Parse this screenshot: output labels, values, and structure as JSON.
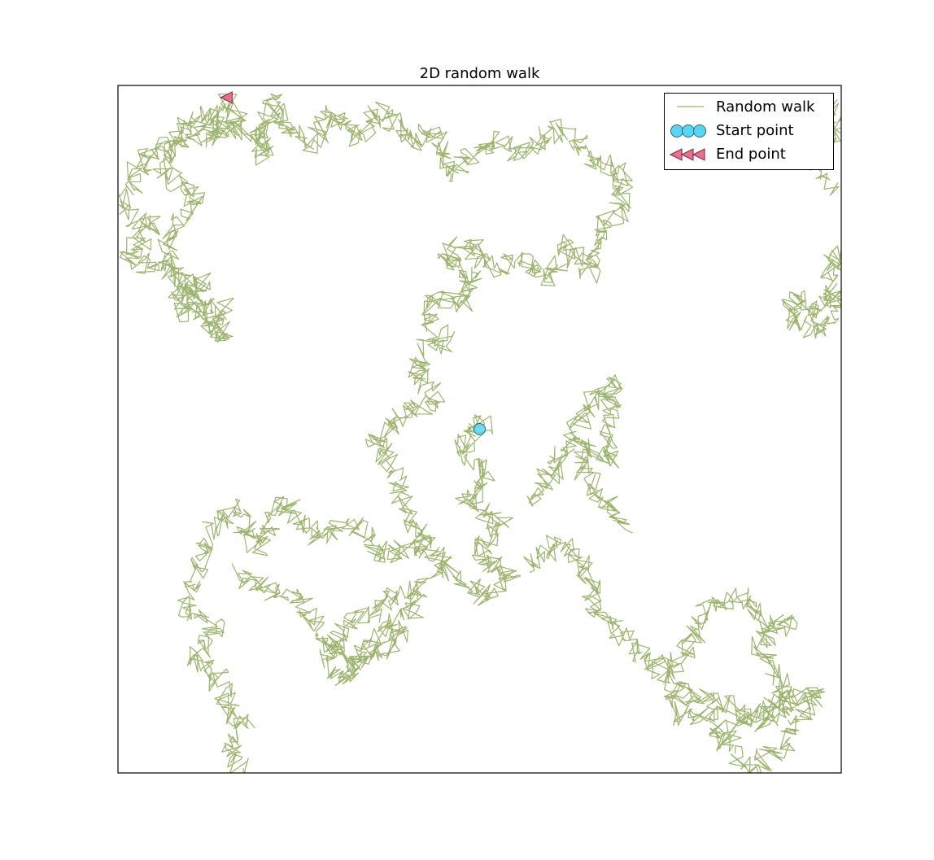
{
  "chart_data": {
    "type": "line",
    "title": "2D random walk",
    "xlabel": "",
    "ylabel": "",
    "axes_ticks": "hidden",
    "grid": false,
    "legend_position": "upper-right",
    "xlim": [
      -150,
      150
    ],
    "ylim": [
      -142,
      142
    ],
    "series": [
      {
        "name": "Random walk",
        "color": "#9cb46e",
        "waypoints": [
          [
            0,
            0
          ],
          [
            2,
            4
          ],
          [
            -8,
            -6
          ],
          [
            4,
            -20
          ],
          [
            -6,
            -30
          ],
          [
            10,
            -40
          ],
          [
            -2,
            -52
          ],
          [
            14,
            -60
          ],
          [
            4,
            -70
          ],
          [
            -10,
            -60
          ],
          [
            -20,
            -50
          ],
          [
            -28,
            -40
          ],
          [
            -36,
            -16
          ],
          [
            -44,
            -4
          ],
          [
            -32,
            6
          ],
          [
            -18,
            12
          ],
          [
            -26,
            22
          ],
          [
            -24,
            32
          ],
          [
            -14,
            36
          ],
          [
            -22,
            44
          ],
          [
            -18,
            54
          ],
          [
            -6,
            52
          ],
          [
            -2,
            62
          ],
          [
            -16,
            70
          ],
          [
            -6,
            78
          ],
          [
            6,
            66
          ],
          [
            18,
            72
          ],
          [
            28,
            62
          ],
          [
            36,
            76
          ],
          [
            46,
            64
          ],
          [
            50,
            84
          ],
          [
            58,
            90
          ],
          [
            60,
            106
          ],
          [
            46,
            112
          ],
          [
            34,
            124
          ],
          [
            18,
            114
          ],
          [
            6,
            120
          ],
          [
            -12,
            106
          ],
          [
            -20,
            124
          ],
          [
            -28,
            118
          ],
          [
            -40,
            132
          ],
          [
            -50,
            120
          ],
          [
            -60,
            130
          ],
          [
            -70,
            118
          ],
          [
            -80,
            124
          ],
          [
            -86,
            136
          ],
          [
            -90,
            112
          ],
          [
            -92,
            122
          ],
          [
            -104,
            124
          ],
          [
            -118,
            122
          ],
          [
            -140,
            112
          ],
          [
            -148,
            90
          ],
          [
            -136,
            84
          ],
          [
            -146,
            70
          ],
          [
            -130,
            66
          ],
          [
            -124,
            56
          ],
          [
            -114,
            62
          ],
          [
            -124,
            48
          ],
          [
            -106,
            50
          ],
          [
            -112,
            44
          ],
          [
            -106,
            38
          ],
          [
            -108,
            42
          ],
          [
            -116,
            52
          ],
          [
            -130,
            70
          ],
          [
            -128,
            80
          ],
          [
            -118,
            94
          ],
          [
            -132,
            108
          ],
          [
            -120,
            128
          ],
          [
            -108,
            130
          ],
          [
            -112,
            120
          ],
          [
            -100,
            128
          ],
          [
            -105,
            137
          ],
          null,
          [
            -18,
            -58
          ],
          [
            -26,
            -48
          ],
          [
            -40,
            -52
          ],
          [
            -52,
            -40
          ],
          [
            -68,
            -44
          ],
          [
            -82,
            -30
          ],
          [
            -92,
            -50
          ],
          [
            -102,
            -32
          ],
          [
            -112,
            -42
          ],
          [
            -116,
            -56
          ],
          [
            -122,
            -72
          ],
          [
            -108,
            -82
          ],
          [
            -118,
            -94
          ],
          [
            -108,
            -104
          ],
          [
            -104,
            -116
          ],
          [
            -96,
            -122
          ],
          [
            -104,
            -130
          ],
          [
            -98,
            -140
          ],
          null,
          [
            -100,
            -60
          ],
          [
            -86,
            -66
          ],
          [
            -76,
            -70
          ],
          [
            -70,
            -80
          ],
          [
            -60,
            -90
          ],
          [
            -52,
            -100
          ],
          [
            -42,
            -84
          ],
          [
            -28,
            -76
          ],
          [
            -24,
            -64
          ],
          [
            -34,
            -68
          ],
          [
            -44,
            -76
          ],
          [
            -54,
            -80
          ],
          [
            -64,
            -96
          ],
          [
            -56,
            -104
          ],
          [
            -50,
            -94
          ],
          [
            -40,
            -92
          ],
          [
            -30,
            -82
          ],
          null,
          [
            20,
            -56
          ],
          [
            32,
            -46
          ],
          [
            44,
            -58
          ],
          [
            48,
            -76
          ],
          [
            64,
            -90
          ],
          [
            78,
            -102
          ],
          [
            88,
            -88
          ],
          [
            94,
            -72
          ],
          [
            108,
            -68
          ],
          [
            118,
            -82
          ],
          [
            128,
            -78
          ],
          [
            116,
            -90
          ],
          [
            122,
            -100
          ],
          [
            128,
            -112
          ],
          [
            112,
            -118
          ],
          [
            102,
            -130
          ],
          [
            96,
            -118
          ],
          [
            84,
            -120
          ],
          [
            80,
            -104
          ],
          [
            88,
            -110
          ],
          [
            100,
            -112
          ],
          [
            118,
            -122
          ],
          [
            130,
            -112
          ],
          [
            140,
            -108
          ],
          [
            132,
            -122
          ],
          [
            124,
            -132
          ],
          [
            112,
            -140
          ],
          [
            106,
            -134
          ],
          null,
          [
            60,
            -40
          ],
          [
            52,
            -30
          ],
          [
            44,
            -20
          ],
          [
            42,
            -6
          ],
          [
            54,
            -12
          ],
          [
            54,
            6
          ],
          [
            56,
            20
          ],
          [
            46,
            12
          ],
          [
            36,
            -8
          ],
          [
            28,
            -20
          ],
          [
            22,
            -32
          ],
          null,
          [
            145,
            100
          ],
          [
            140,
            112
          ],
          [
            148,
            126
          ],
          [
            142,
            136
          ],
          [
            134,
            130
          ],
          [
            150,
            118
          ],
          null,
          [
            150,
            56
          ],
          [
            140,
            48
          ],
          [
            132,
            56
          ],
          [
            128,
            48
          ],
          [
            138,
            40
          ],
          [
            148,
            52
          ],
          [
            144,
            64
          ],
          [
            150,
            74
          ]
        ]
      }
    ],
    "start_point": {
      "label": "Start point",
      "x": 0,
      "y": 0,
      "color": "#5ad5f5"
    },
    "end_point": {
      "label": "End point",
      "x": -105,
      "y": 137,
      "color": "#e8708e"
    }
  }
}
